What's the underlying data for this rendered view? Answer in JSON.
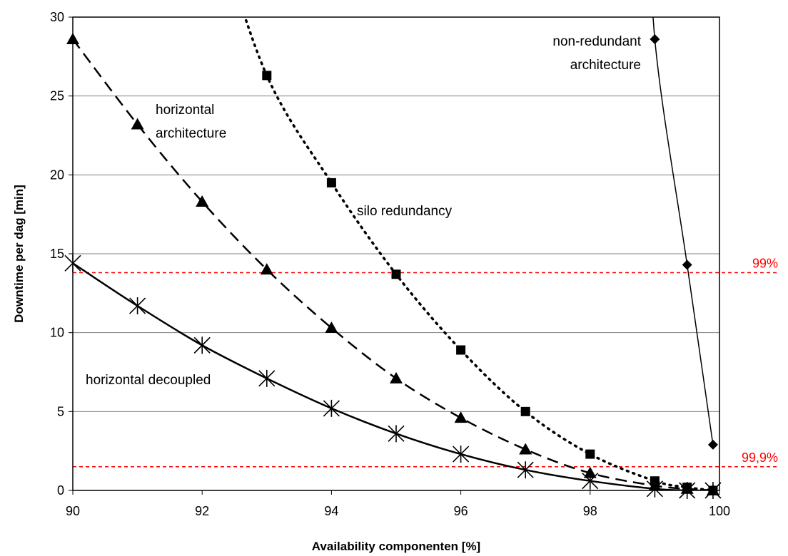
{
  "chart_data": {
    "type": "line",
    "title": "",
    "xlabel": "Availability componenten [%]",
    "ylabel": "Downtime per dag [min]",
    "xlim": [
      90,
      100
    ],
    "ylim": [
      0,
      30
    ],
    "xticks": [
      "90",
      "92",
      "94",
      "96",
      "98",
      "100"
    ],
    "yticks": [
      "0",
      "5",
      "10",
      "15",
      "20",
      "25",
      "30"
    ],
    "grid": "horizontal",
    "series": [
      {
        "key": "non_redundant",
        "marker": "diamond",
        "line": "thin-solid",
        "x": [
          99,
          99.5,
          99.9
        ],
        "y": [
          28.6,
          14.3,
          2.9
        ]
      },
      {
        "key": "silo",
        "marker": "square",
        "line": "dotted",
        "x": [
          93,
          94,
          95,
          96,
          97,
          98,
          99,
          99.5,
          99.9
        ],
        "y": [
          26.3,
          19.5,
          13.7,
          8.9,
          5.0,
          2.3,
          0.6,
          0.2,
          0.0
        ]
      },
      {
        "key": "horizontal",
        "marker": "triangle",
        "line": "dashed",
        "x": [
          90,
          91,
          92,
          93,
          94,
          95,
          96,
          97,
          98,
          99,
          99.5,
          99.9
        ],
        "y": [
          28.6,
          23.2,
          18.3,
          14.0,
          10.3,
          7.1,
          4.6,
          2.6,
          1.1,
          0.3,
          0.1,
          0.0
        ]
      },
      {
        "key": "decoupled",
        "marker": "star",
        "line": "solid",
        "x": [
          90,
          91,
          92,
          93,
          94,
          95,
          96,
          97,
          98,
          99,
          99.5,
          99.9
        ],
        "y": [
          14.4,
          11.7,
          9.2,
          7.1,
          5.2,
          3.6,
          2.3,
          1.3,
          0.6,
          0.1,
          0.0,
          0.0
        ]
      }
    ],
    "annotations": [
      {
        "key": "non_redundant",
        "lines": [
          "non-redundant",
          "architecture"
        ]
      },
      {
        "key": "horizontal",
        "lines": [
          "horizontal",
          "architecture"
        ]
      },
      {
        "key": "silo",
        "lines": [
          "silo redundancy"
        ]
      },
      {
        "key": "decoupled",
        "lines": [
          "horizontal decoupled"
        ]
      }
    ],
    "reference_lines": [
      {
        "y": 13.8,
        "label": "99%",
        "color": "#ff0000"
      },
      {
        "y": 1.5,
        "label": "99,9%",
        "color": "#ff0000"
      }
    ]
  }
}
